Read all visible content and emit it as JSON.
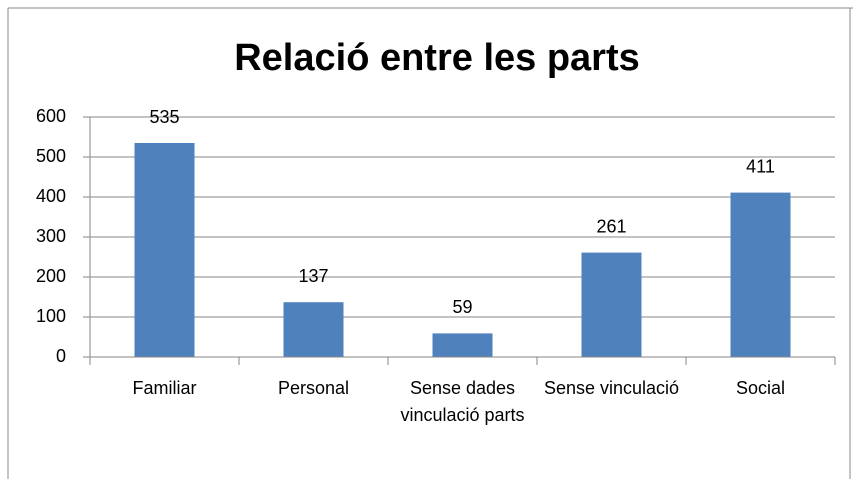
{
  "chart_data": {
    "type": "bar",
    "title": "Relació entre les parts",
    "categories": [
      "Familiar",
      "Personal",
      "Sense dades vinculació parts",
      "Sense vinculació",
      "Social"
    ],
    "values": [
      535,
      137,
      59,
      261,
      411
    ],
    "color": "#4f81bd",
    "ylim": [
      0,
      600
    ],
    "yticks": [
      0,
      100,
      200,
      300,
      400,
      500,
      600
    ],
    "grid": true
  }
}
